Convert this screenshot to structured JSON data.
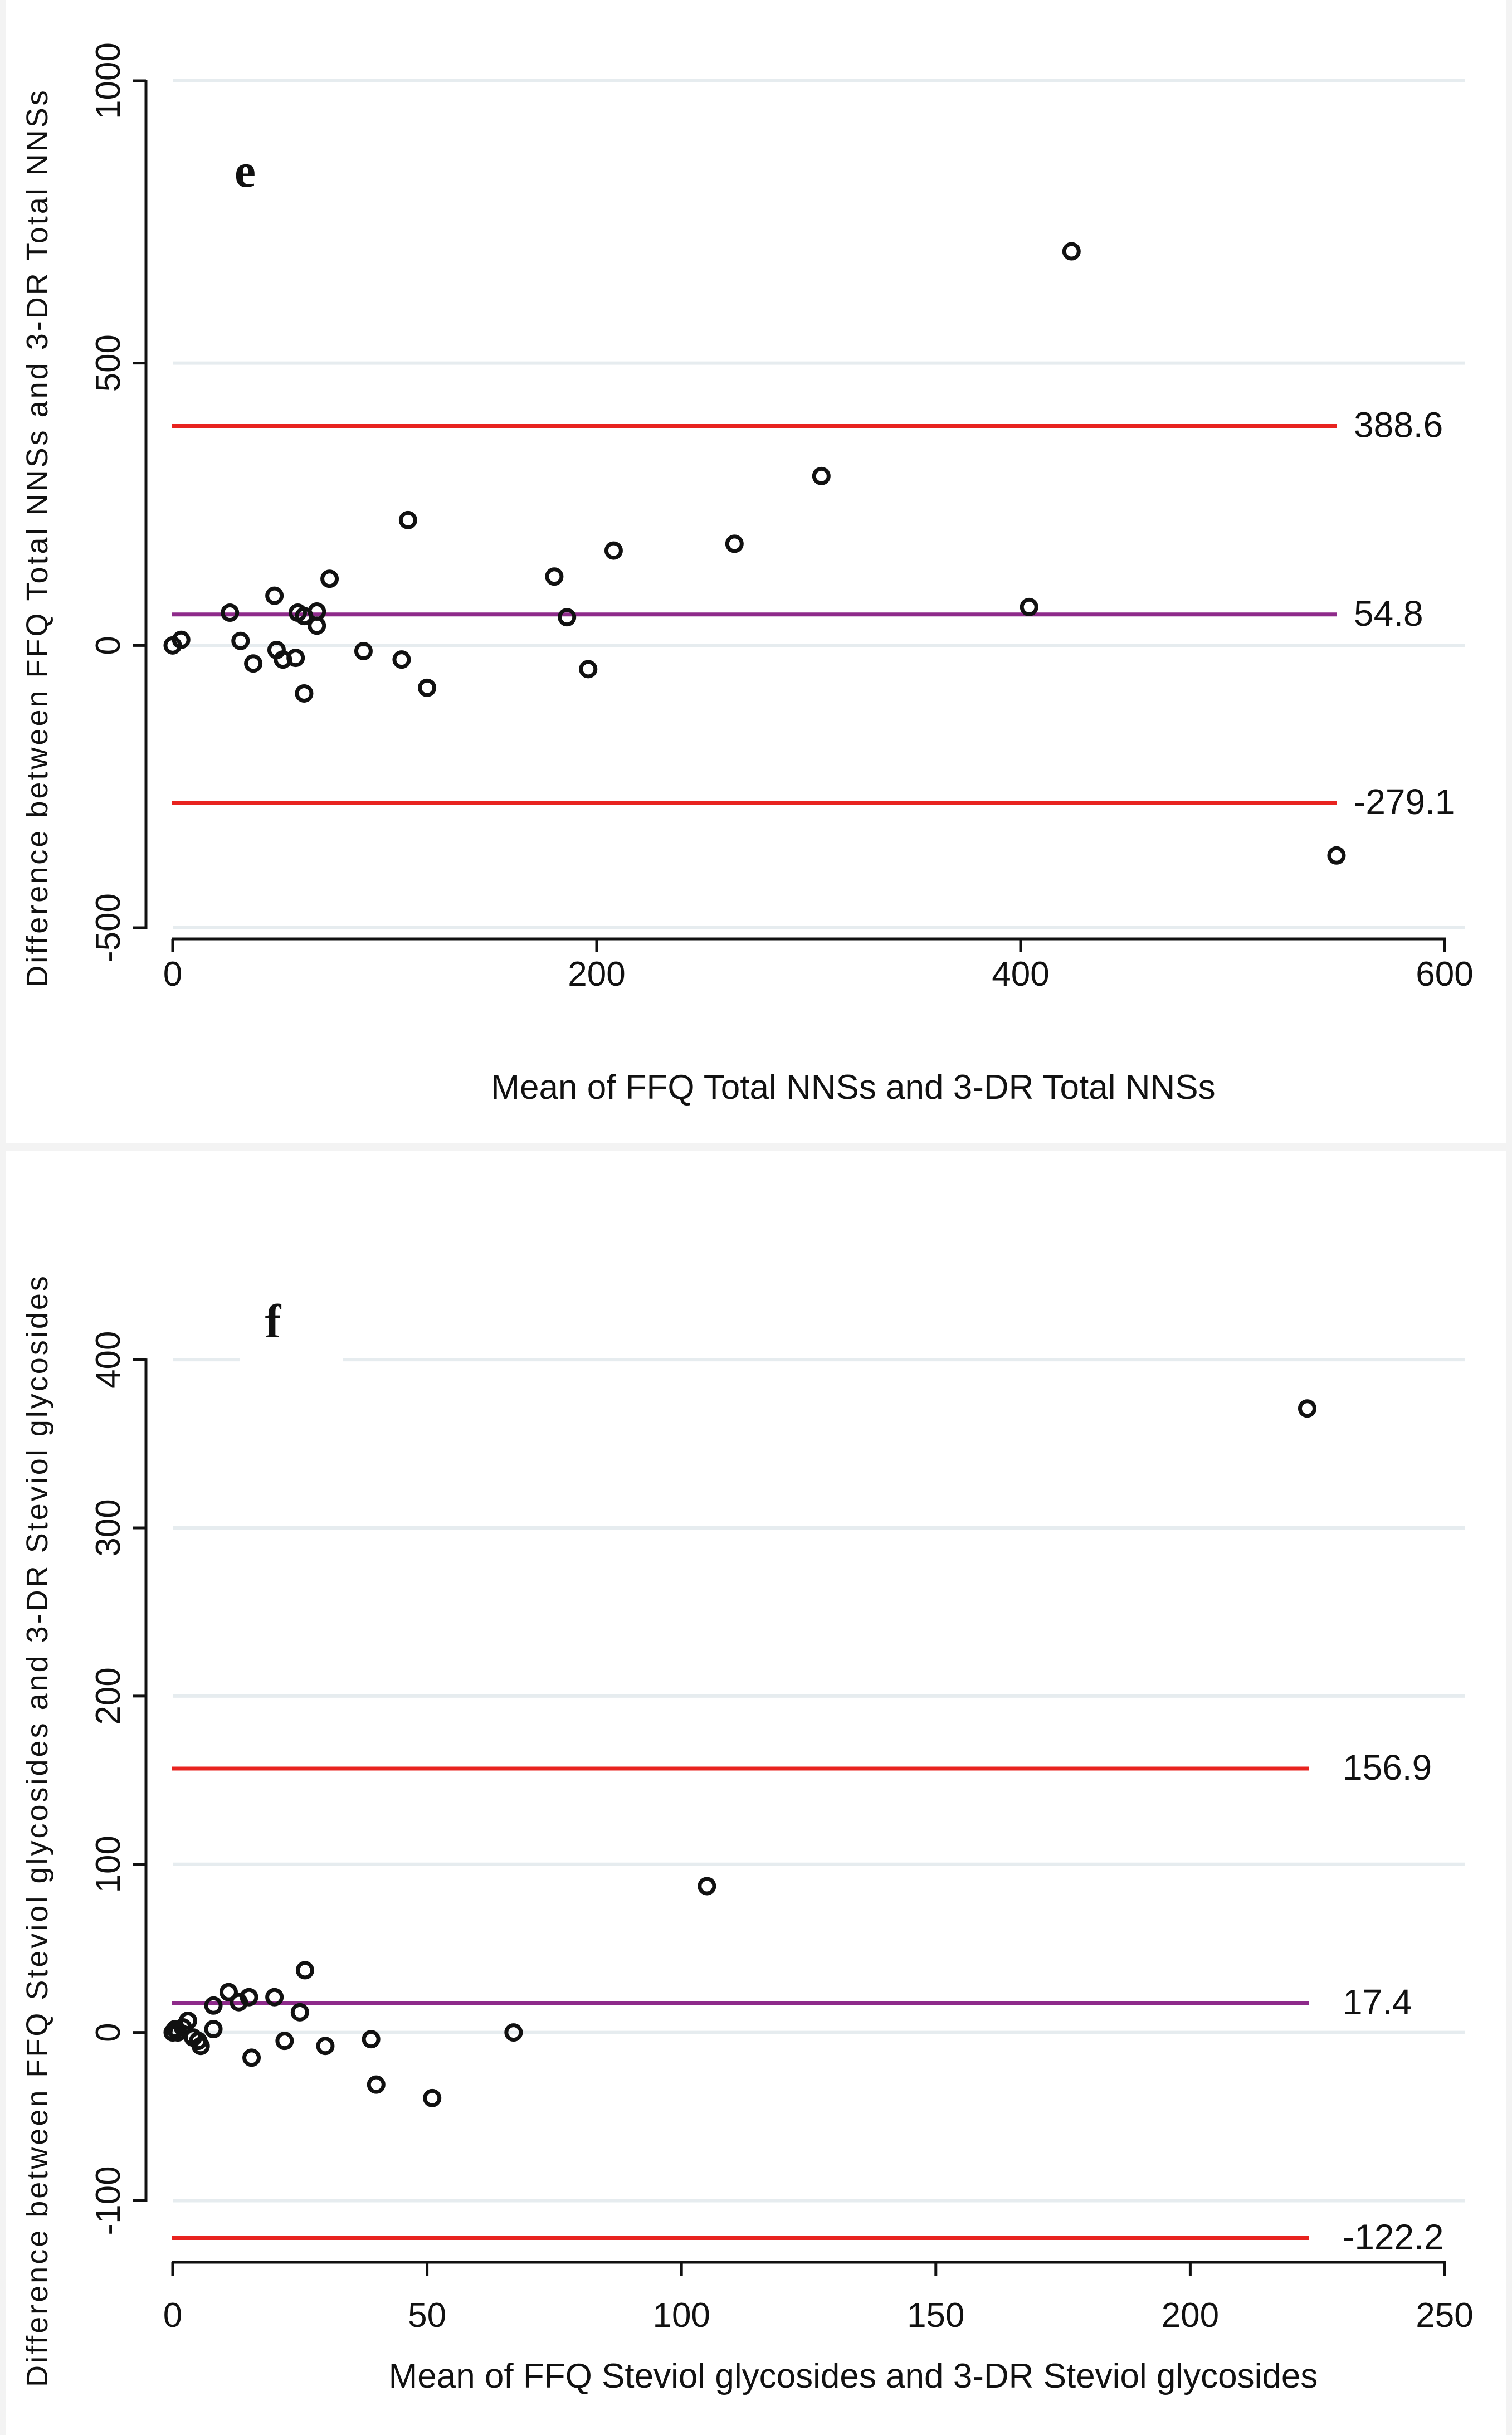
{
  "chart_data": [
    {
      "type": "scatter",
      "panel_label": "e",
      "title": "",
      "xlabel": "Mean of FFQ Total NNSs and 3-DR Total NNSs",
      "ylabel": "Difference between FFQ Total NNSs and 3-DR Total NNSs",
      "xlim": [
        0,
        600
      ],
      "ylim": [
        -500,
        1000
      ],
      "xticks": [
        0,
        200,
        400,
        600
      ],
      "yticks": [
        -500,
        0,
        500,
        1000
      ],
      "grid": true,
      "x_line_end": 550,
      "reference_lines": [
        {
          "name": "upper-limit",
          "value": 388.6,
          "label": "388.6",
          "color": "#e8231f"
        },
        {
          "name": "mean-difference",
          "value": 54.8,
          "label": "54.8",
          "color": "#8e2a8a"
        },
        {
          "name": "lower-limit",
          "value": -279.1,
          "label": "-279.1",
          "color": "#e8231f"
        }
      ],
      "points": [
        [
          0,
          0
        ],
        [
          4,
          10
        ],
        [
          27,
          58
        ],
        [
          32,
          8
        ],
        [
          38,
          -32
        ],
        [
          48,
          88
        ],
        [
          49,
          -8
        ],
        [
          52,
          -25
        ],
        [
          58,
          -22
        ],
        [
          59,
          58
        ],
        [
          62,
          52
        ],
        [
          62,
          -85
        ],
        [
          68,
          35
        ],
        [
          68,
          60
        ],
        [
          74,
          118
        ],
        [
          90,
          -10
        ],
        [
          108,
          -25
        ],
        [
          111,
          222
        ],
        [
          120,
          -75
        ],
        [
          180,
          122
        ],
        [
          186,
          50
        ],
        [
          196,
          -42
        ],
        [
          208,
          168
        ],
        [
          265,
          180
        ],
        [
          306,
          300
        ],
        [
          404,
          68
        ],
        [
          424,
          698
        ],
        [
          549,
          -372
        ]
      ]
    },
    {
      "type": "scatter",
      "panel_label": "f",
      "title": "",
      "xlabel": "Mean of FFQ Steviol glycosides and 3-DR Steviol glycosides",
      "ylabel": "Difference between FFQ Steviol glycosides and 3-DR Steviol glycosides",
      "xlim": [
        0,
        250
      ],
      "ylim": [
        -130,
        410
      ],
      "xticks": [
        0,
        50,
        100,
        150,
        200,
        250
      ],
      "yticks": [
        -100,
        0,
        100,
        200,
        300,
        400
      ],
      "grid": true,
      "x_line_end": 223,
      "reference_lines": [
        {
          "name": "upper-limit",
          "value": 156.9,
          "label": "156.9",
          "color": "#e8231f"
        },
        {
          "name": "mean-difference",
          "value": 17.4,
          "label": "17.4",
          "color": "#8e2a8a"
        },
        {
          "name": "lower-limit",
          "value": -122.2,
          "label": "-122.2",
          "color": "#e8231f"
        }
      ],
      "points": [
        [
          0,
          0
        ],
        [
          0.5,
          2
        ],
        [
          1,
          0
        ],
        [
          2,
          3
        ],
        [
          3,
          7
        ],
        [
          4,
          -3
        ],
        [
          5,
          -5
        ],
        [
          5.5,
          -8
        ],
        [
          8,
          2
        ],
        [
          8,
          16
        ],
        [
          11,
          24
        ],
        [
          13,
          18
        ],
        [
          15,
          21
        ],
        [
          15.5,
          -15
        ],
        [
          20,
          21
        ],
        [
          22,
          -5
        ],
        [
          25,
          12
        ],
        [
          26,
          37
        ],
        [
          30,
          -8
        ],
        [
          39,
          -4
        ],
        [
          40,
          -31
        ],
        [
          51,
          -39
        ],
        [
          67,
          0
        ],
        [
          105,
          87
        ],
        [
          223,
          371
        ]
      ]
    }
  ]
}
